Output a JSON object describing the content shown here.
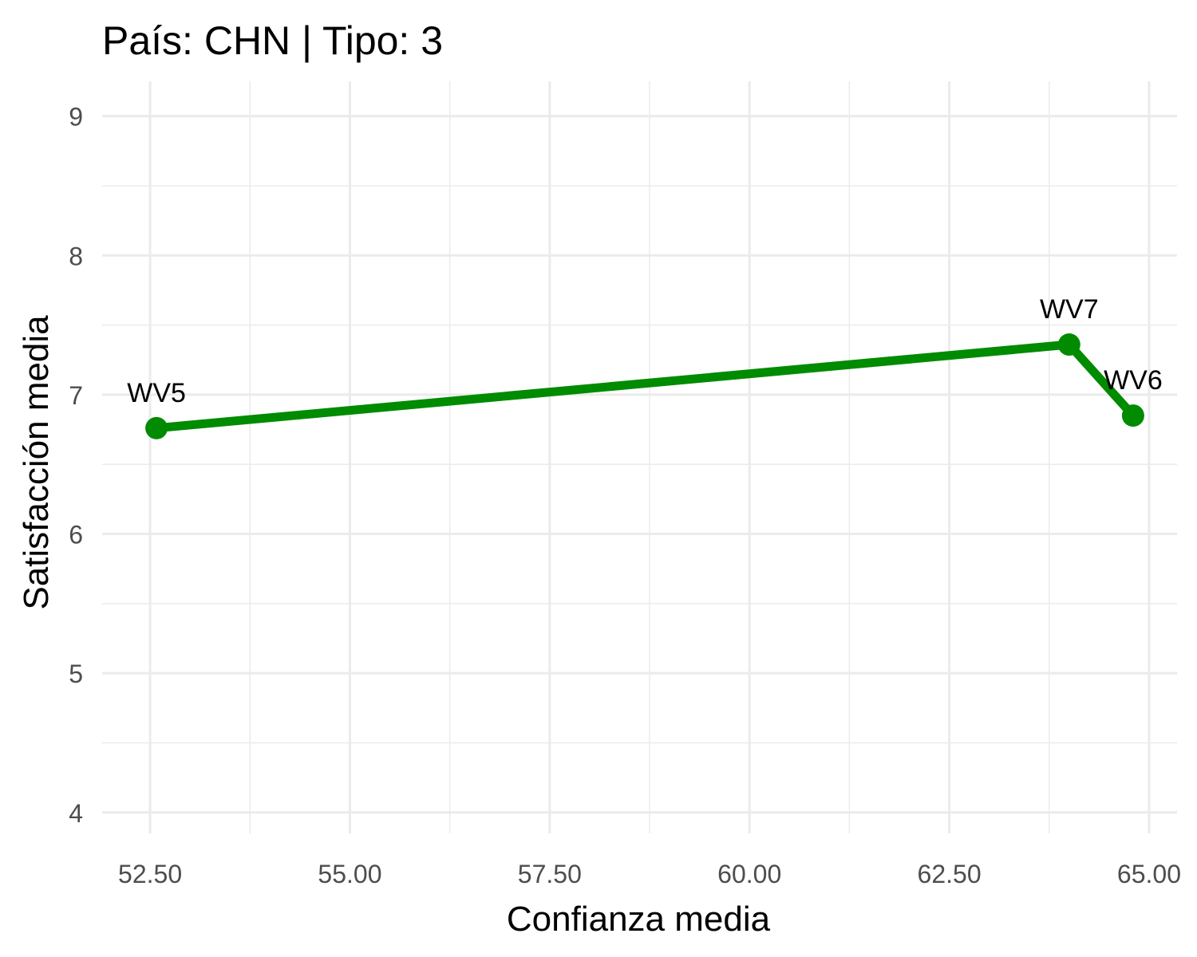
{
  "chart_data": {
    "type": "line",
    "title": "País: CHN | Tipo: 3",
    "xlabel": "Confianza media",
    "ylabel": "Satisfacción media",
    "xlim": [
      51.9,
      65.35
    ],
    "ylim": [
      3.85,
      9.25
    ],
    "x_ticks": [
      52.5,
      55.0,
      57.5,
      60.0,
      62.5,
      65.0
    ],
    "x_tick_labels": [
      "52.50",
      "55.00",
      "57.50",
      "60.00",
      "62.50",
      "65.00"
    ],
    "y_ticks": [
      4,
      5,
      6,
      7,
      8,
      9
    ],
    "y_tick_labels": [
      "4",
      "5",
      "6",
      "7",
      "8",
      "9"
    ],
    "grid": true,
    "legend": "none",
    "series": [
      {
        "color": "#008b00",
        "points": [
          {
            "label": "WV5",
            "x": 52.58,
            "y": 6.76
          },
          {
            "label": "WV7",
            "x": 64.0,
            "y": 7.36
          },
          {
            "label": "WV6",
            "x": 64.8,
            "y": 6.85
          }
        ]
      }
    ]
  }
}
